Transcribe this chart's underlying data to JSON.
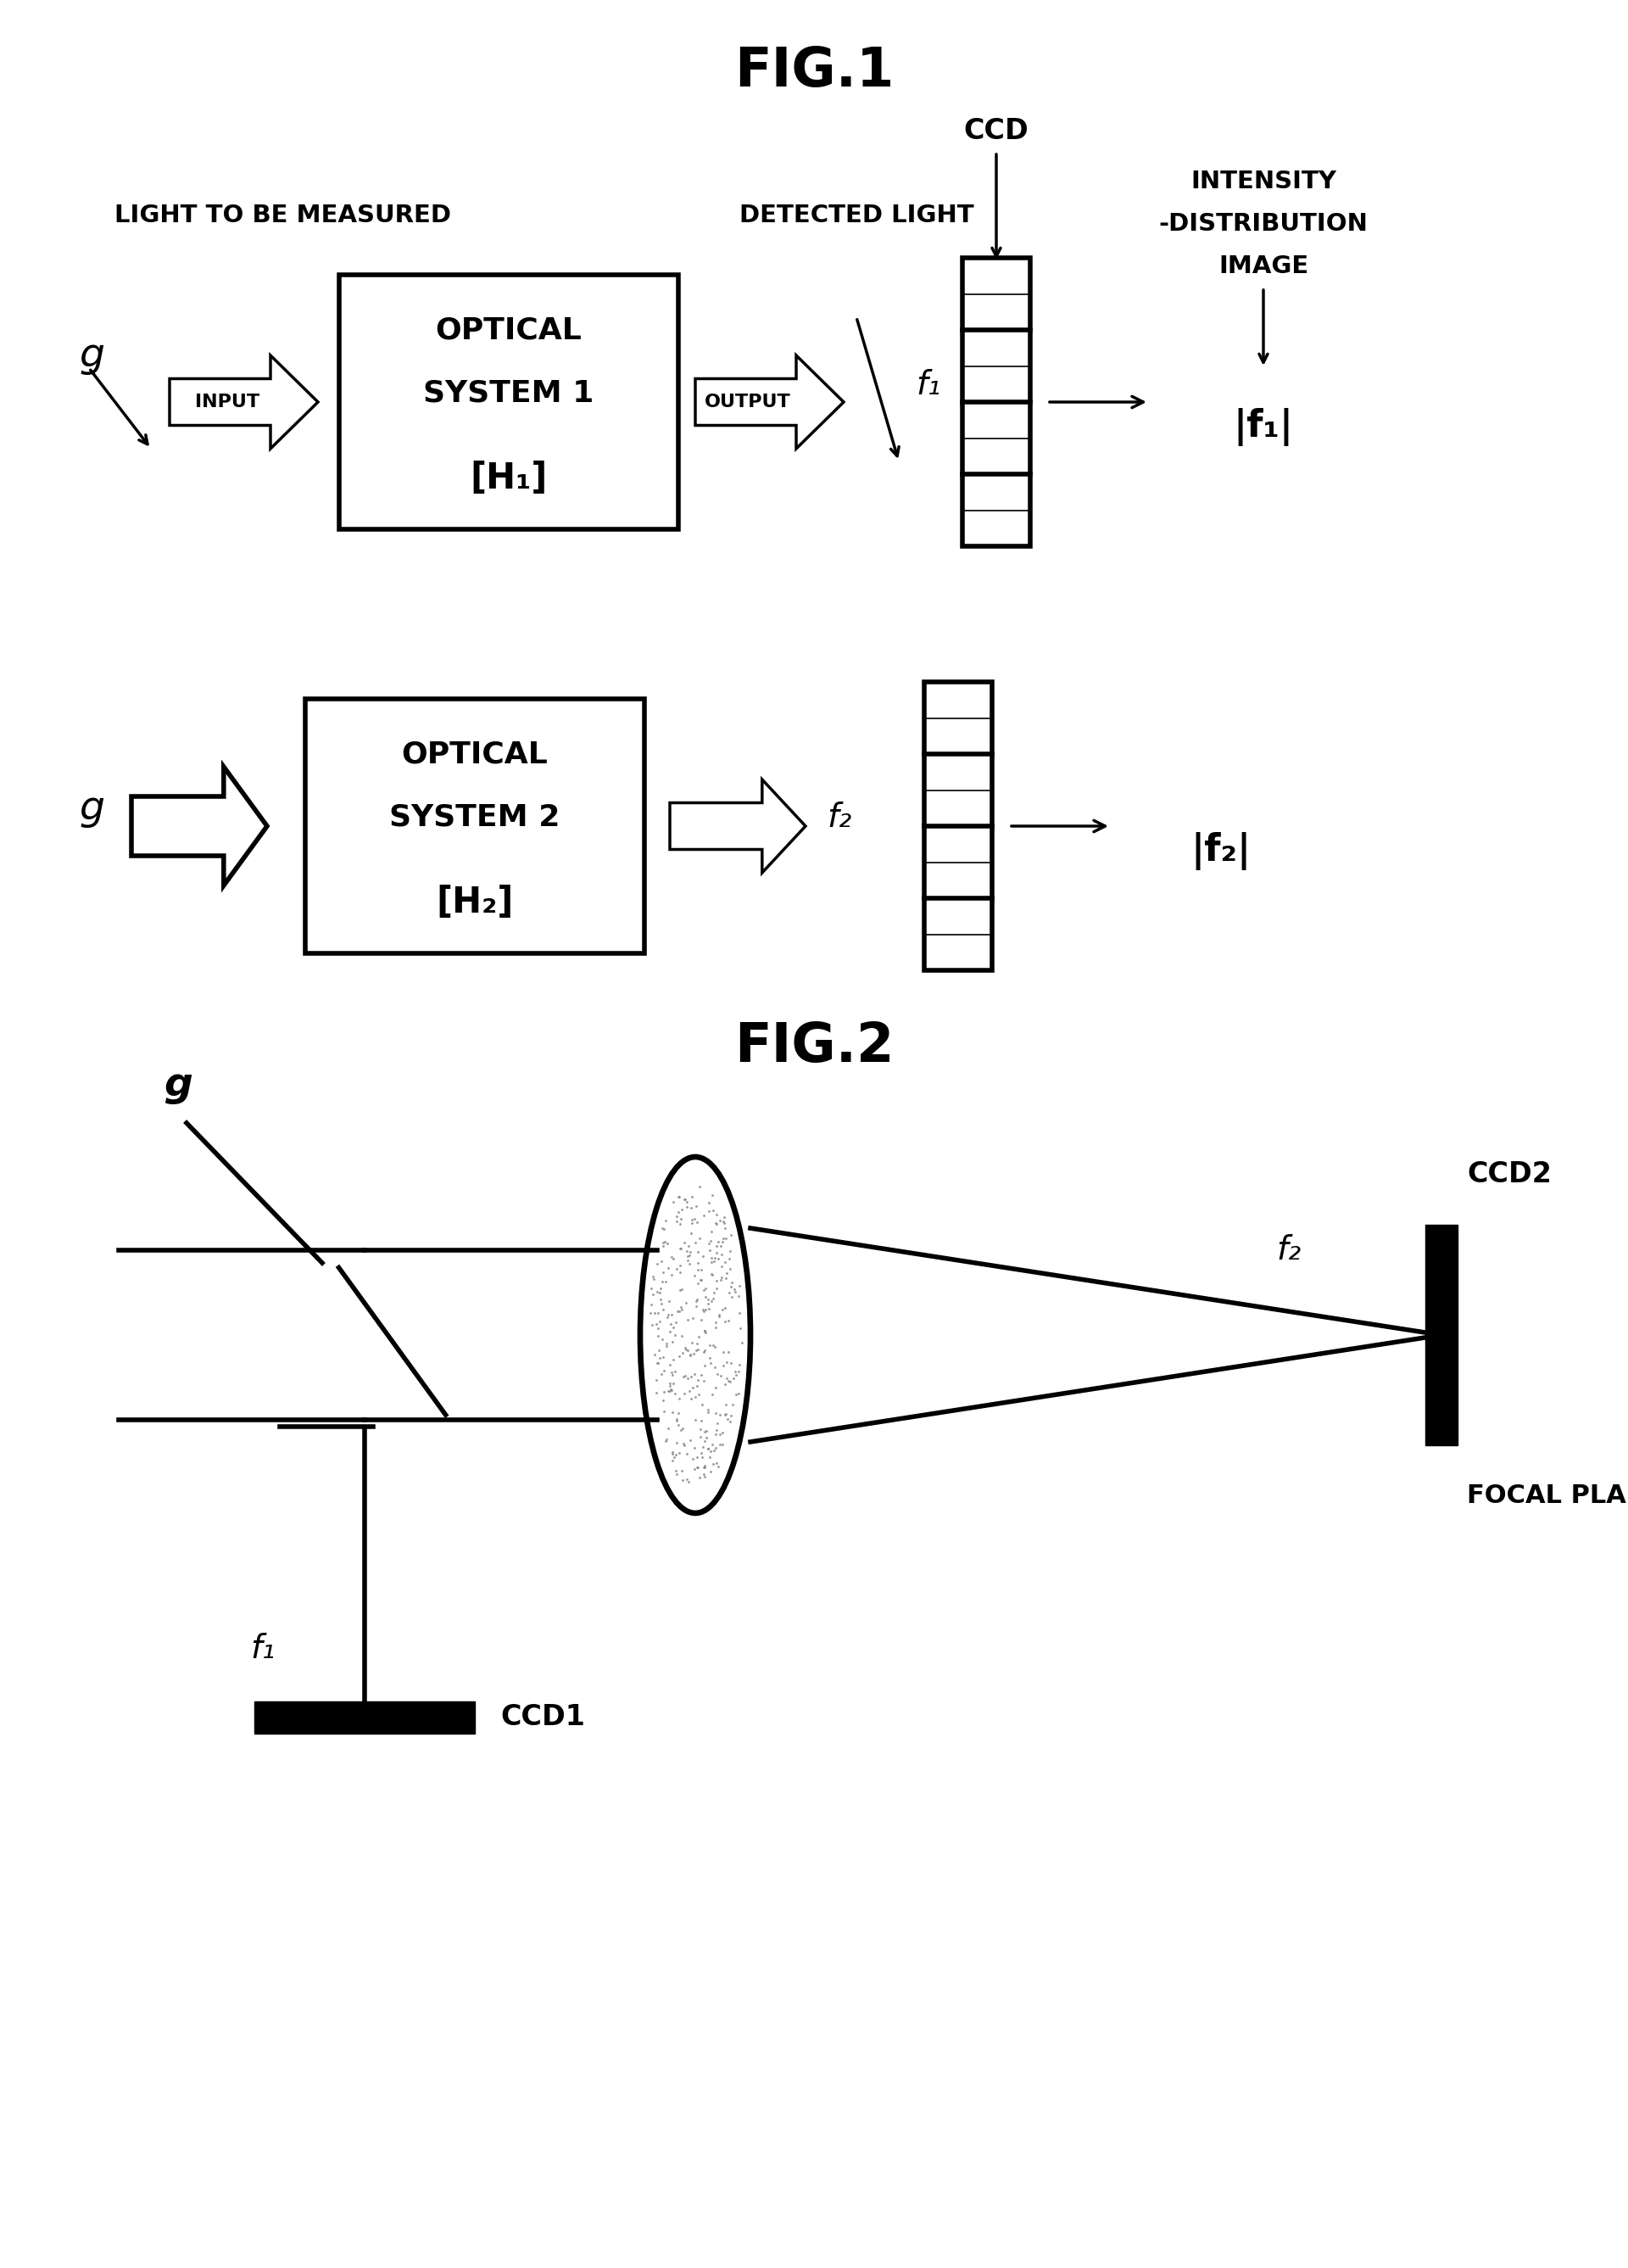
{
  "fig1_title": "FIG.1",
  "fig2_title": "FIG.2",
  "bg_color": "#ffffff",
  "row1_label_left": "LIGHT TO BE MEASURED",
  "row1_detected": "DETECTED LIGHT",
  "row1_g": "g",
  "row1_input_label": "INPUT",
  "row1_box_line1": "OPTICAL",
  "row1_box_line2": "SYSTEM 1",
  "row1_box_line3": "[H₁]",
  "row1_output_label": "OUTPUT",
  "row1_f1": "f₁",
  "row1_ccd_label": "CCD",
  "row1_intensity_line1": "INTENSITY",
  "row1_intensity_line2": "-DISTRIBUTION",
  "row1_intensity_line3": "IMAGE",
  "row1_abs_f1": "|f₁|",
  "row2_g": "g",
  "row2_box_line1": "OPTICAL",
  "row2_box_line2": "SYSTEM 2",
  "row2_box_line3": "[H₂]",
  "row2_f2": "f₂",
  "row2_abs_f2": "|f₂|",
  "fig2_g": "g",
  "fig2_f2": "f₂",
  "fig2_ccd1": "CCD1",
  "fig2_ccd2": "CCD2",
  "fig2_focal": "FOCAL PLANE",
  "fig2_f1": "f₁"
}
